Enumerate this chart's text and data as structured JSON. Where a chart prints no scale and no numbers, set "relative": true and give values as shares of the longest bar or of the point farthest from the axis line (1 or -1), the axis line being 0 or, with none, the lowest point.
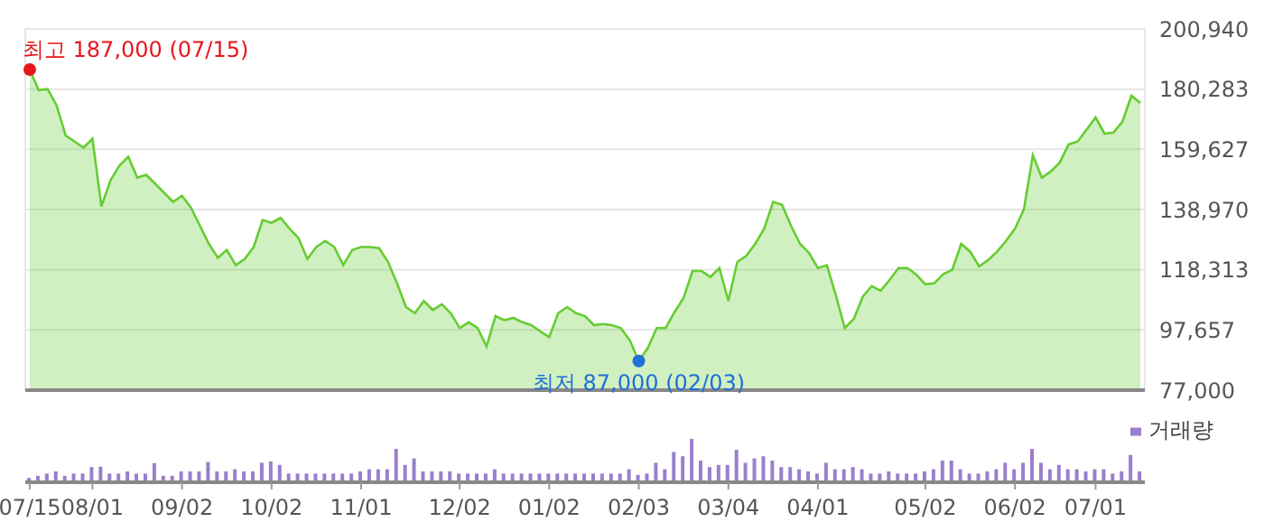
{
  "chart_data": [
    {
      "type": "area",
      "color": "#66cc33",
      "categories": [
        "07/15",
        null,
        null,
        null,
        null,
        null,
        null,
        "08/01",
        null,
        null,
        null,
        null,
        null,
        null,
        null,
        null,
        null,
        "09/02",
        null,
        null,
        null,
        null,
        null,
        null,
        null,
        null,
        null,
        "10/02",
        null,
        null,
        null,
        null,
        null,
        null,
        null,
        null,
        null,
        "11/01",
        null,
        null,
        null,
        null,
        null,
        null,
        null,
        null,
        null,
        null,
        "12/02",
        null,
        null,
        null,
        null,
        null,
        null,
        null,
        null,
        null,
        "01/02",
        null,
        null,
        null,
        null,
        null,
        null,
        null,
        null,
        null,
        "02/03",
        null,
        null,
        null,
        null,
        null,
        null,
        null,
        null,
        null,
        "03/04",
        null,
        null,
        null,
        null,
        null,
        null,
        null,
        null,
        null,
        "04/01",
        null,
        null,
        null,
        null,
        null,
        null,
        null,
        null,
        null,
        null,
        null,
        "05/02",
        null,
        null,
        null,
        null,
        null,
        null,
        null,
        null,
        null,
        "06/02",
        null,
        null,
        null,
        null,
        null,
        null,
        null,
        null,
        "07/01",
        null,
        null,
        null,
        null,
        null
      ],
      "values": [
        187000,
        179900,
        180300,
        174700,
        164400,
        162300,
        160200,
        163300,
        140000,
        148900,
        154000,
        157100,
        149900,
        150900,
        147800,
        144700,
        141600,
        143700,
        139600,
        133400,
        127200,
        122400,
        125100,
        119900,
        122000,
        126100,
        135400,
        134400,
        136100,
        132400,
        129200,
        122000,
        126100,
        128200,
        126100,
        119900,
        125100,
        126100,
        126100,
        125700,
        121000,
        113700,
        105500,
        103400,
        107600,
        104500,
        106500,
        103400,
        98300,
        100300,
        98300,
        92000,
        102400,
        101000,
        101800,
        100300,
        99300,
        97200,
        95200,
        103400,
        105500,
        103400,
        102400,
        99300,
        99700,
        99300,
        98300,
        94100,
        87000,
        91400,
        98300,
        98300,
        103800,
        108600,
        117900,
        117900,
        115800,
        118900,
        107600,
        121000,
        123100,
        127200,
        132400,
        141600,
        140600,
        133400,
        127200,
        124100,
        118900,
        119900,
        109600,
        98300,
        101400,
        109000,
        112700,
        111100,
        114800,
        118900,
        118900,
        116600,
        113300,
        113700,
        116800,
        118300,
        127200,
        124500,
        119500,
        121600,
        124500,
        128200,
        132400,
        139000,
        157600,
        149900,
        152000,
        155100,
        161300,
        162300,
        166400,
        170600,
        165000,
        165400,
        169100,
        178000,
        175500
      ],
      "ylim": [
        77000,
        200940
      ],
      "yticks": [
        {
          "value": 77000,
          "label": "77,000"
        },
        {
          "value": 97657,
          "label": "97,657"
        },
        {
          "value": 118313,
          "label": "118,313"
        },
        {
          "value": 138970,
          "label": "138,970"
        },
        {
          "value": 159627,
          "label": "159,627"
        },
        {
          "value": 180283,
          "label": "180,283"
        },
        {
          "value": 200940,
          "label": "200,940"
        }
      ],
      "grid": true,
      "tick_labels": "y",
      "annotations": [
        {
          "text": "최고 187,000 (07/15)",
          "x": "07/15",
          "y": 187000
        },
        {
          "text": "최저 87,000 (02/03)",
          "x": "02/03",
          "y": 87000
        }
      ]
    },
    {
      "type": "bar",
      "relative": true,
      "legend": "top right",
      "tick_labels": "x",
      "categories": [
        "07/15",
        null,
        null,
        null,
        null,
        null,
        null,
        "08/01",
        null,
        null,
        null,
        null,
        null,
        null,
        null,
        null,
        null,
        "09/02",
        null,
        null,
        null,
        null,
        null,
        null,
        null,
        null,
        null,
        "10/02",
        null,
        null,
        null,
        null,
        null,
        null,
        null,
        null,
        null,
        "11/01",
        null,
        null,
        null,
        null,
        null,
        null,
        null,
        null,
        null,
        null,
        "12/02",
        null,
        null,
        null,
        null,
        null,
        null,
        null,
        null,
        null,
        "01/02",
        null,
        null,
        null,
        null,
        null,
        null,
        null,
        null,
        null,
        "02/03",
        null,
        null,
        null,
        null,
        null,
        null,
        null,
        null,
        null,
        "03/04",
        null,
        null,
        null,
        null,
        null,
        null,
        null,
        null,
        null,
        "04/01",
        null,
        null,
        null,
        null,
        null,
        null,
        null,
        null,
        null,
        null,
        null,
        "05/02",
        null,
        null,
        null,
        null,
        null,
        null,
        null,
        null,
        null,
        "06/02",
        null,
        null,
        null,
        null,
        null,
        null,
        null,
        null,
        "07/01",
        null,
        null,
        null,
        null,
        null
      ],
      "series": [
        {
          "name": "거래량",
          "color": "#9a7fcc",
          "values": [
            0.1,
            0.15,
            0.2,
            0.25,
            0.15,
            0.2,
            0.2,
            0.35,
            0.36,
            0.2,
            0.2,
            0.25,
            0.2,
            0.2,
            0.44,
            0.15,
            0.15,
            0.25,
            0.25,
            0.25,
            0.47,
            0.25,
            0.25,
            0.3,
            0.25,
            0.25,
            0.45,
            0.48,
            0.4,
            0.2,
            0.2,
            0.2,
            0.2,
            0.2,
            0.2,
            0.2,
            0.2,
            0.25,
            0.3,
            0.3,
            0.3,
            0.77,
            0.4,
            0.55,
            0.25,
            0.25,
            0.25,
            0.25,
            0.2,
            0.2,
            0.2,
            0.2,
            0.3,
            0.2,
            0.2,
            0.2,
            0.2,
            0.2,
            0.2,
            0.2,
            0.2,
            0.2,
            0.2,
            0.2,
            0.2,
            0.2,
            0.2,
            0.3,
            0.17,
            0.2,
            0.45,
            0.3,
            0.7,
            0.6,
            1,
            0.5,
            0.35,
            0.4,
            0.4,
            0.75,
            0.45,
            0.55,
            0.6,
            0.5,
            0.35,
            0.35,
            0.3,
            0.25,
            0.2,
            0.45,
            0.3,
            0.3,
            0.35,
            0.3,
            0.2,
            0.2,
            0.25,
            0.2,
            0.2,
            0.2,
            0.25,
            0.3,
            0.5,
            0.5,
            0.3,
            0.2,
            0.2,
            0.25,
            0.3,
            0.45,
            0.3,
            0.45,
            0.77,
            0.45,
            0.3,
            0.4,
            0.3,
            0.3,
            0.25,
            0.3,
            0.3,
            0.2,
            0.25,
            0.63,
            0.25
          ]
        }
      ]
    }
  ]
}
